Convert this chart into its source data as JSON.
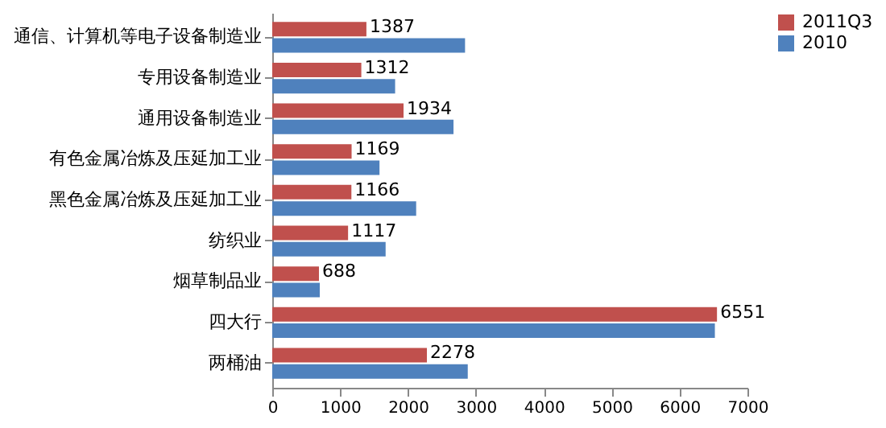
{
  "chart_data": {
    "type": "bar",
    "orientation": "horizontal",
    "categories": [
      "通信、计算机等电子设备制造业",
      "专用设备制造业",
      "通用设备制造业",
      "有色金属冶炼及压延加工业",
      "黑色金属冶炼及压延加工业",
      "纺织业",
      "烟草制品业",
      "四大行",
      "两桶油"
    ],
    "series": [
      {
        "name": "2011Q3",
        "color": "#c0504d",
        "values": [
          1387,
          1312,
          1934,
          1169,
          1166,
          1117,
          688,
          6551,
          2278
        ],
        "value_labels": [
          "1387",
          "1312",
          "1934",
          "1169",
          "1166",
          "1117",
          "688",
          "6551",
          "2278"
        ]
      },
      {
        "name": "2010",
        "color": "#4f81bd",
        "values": [
          2840,
          1810,
          2670,
          1580,
          2120,
          1670,
          700,
          6520,
          2880
        ]
      }
    ],
    "xlim": [
      0,
      7000
    ],
    "xticks": [
      0,
      1000,
      2000,
      3000,
      4000,
      5000,
      6000,
      7000
    ],
    "grid": false,
    "legend": "right"
  }
}
